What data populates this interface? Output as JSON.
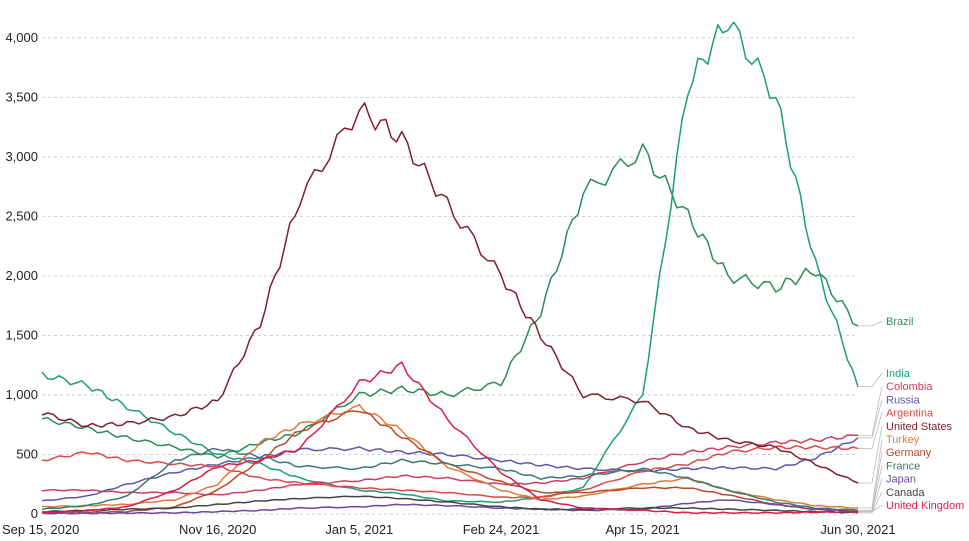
{
  "chart_data": {
    "type": "line",
    "xlabel": "",
    "ylabel": "",
    "ylim": [
      0,
      4200
    ],
    "grid": true,
    "legend_placement": "right",
    "x_ticks": [
      "Sep 15, 2020",
      "Nov 16, 2020",
      "Jan 5, 2021",
      "Feb 24, 2021",
      "Apr 15, 2021",
      "Jun 30, 2021"
    ],
    "y_ticks": [
      "0",
      "500",
      "1,000",
      "1,500",
      "2,000",
      "2,500",
      "3,000",
      "3,500",
      "4,000"
    ],
    "y_tick_values": [
      0,
      500,
      1000,
      1500,
      2000,
      2500,
      3000,
      3500,
      4000
    ],
    "x": [
      "2020-09-15",
      "2020-10-01",
      "2020-10-15",
      "2020-11-01",
      "2020-11-16",
      "2020-12-01",
      "2020-12-15",
      "2021-01-05",
      "2021-01-20",
      "2021-02-05",
      "2021-02-24",
      "2021-03-10",
      "2021-03-25",
      "2021-04-15",
      "2021-05-01",
      "2021-05-15",
      "2021-06-01",
      "2021-06-15",
      "2021-06-30"
    ],
    "series": [
      {
        "name": "Brazil",
        "color": "#2e8b57",
        "values": [
          800,
          720,
          640,
          560,
          480,
          600,
          680,
          1000,
          1050,
          1000,
          1100,
          1700,
          2700,
          3050,
          2500,
          2000,
          1900,
          2050,
          1580
        ]
      },
      {
        "name": "India",
        "color": "#1a9e7e",
        "values": [
          1170,
          1080,
          900,
          680,
          500,
          420,
          300,
          200,
          170,
          110,
          100,
          140,
          220,
          1000,
          3600,
          4150,
          3500,
          2100,
          1070
        ]
      },
      {
        "name": "Colombia",
        "color": "#c94060",
        "values": [
          200,
          200,
          180,
          180,
          160,
          200,
          250,
          280,
          320,
          300,
          250,
          260,
          300,
          440,
          520,
          560,
          600,
          620,
          660
        ]
      },
      {
        "name": "Russia",
        "color": "#5a5aa8",
        "values": [
          110,
          150,
          250,
          350,
          420,
          480,
          540,
          550,
          520,
          500,
          450,
          410,
          380,
          360,
          380,
          390,
          380,
          470,
          640
        ]
      },
      {
        "name": "Argentina",
        "color": "#e04848",
        "values": [
          450,
          520,
          450,
          420,
          400,
          300,
          260,
          220,
          200,
          180,
          140,
          140,
          200,
          360,
          420,
          520,
          560,
          560,
          550
        ]
      },
      {
        "name": "United States",
        "color": "#7d2032",
        "values": [
          850,
          740,
          760,
          820,
          950,
          1600,
          2650,
          3400,
          3150,
          2600,
          2000,
          1500,
          1000,
          950,
          720,
          620,
          560,
          420,
          260
        ]
      },
      {
        "name": "Turkey",
        "color": "#e07a3a",
        "values": [
          60,
          70,
          80,
          120,
          250,
          600,
          750,
          900,
          700,
          400,
          200,
          120,
          150,
          250,
          300,
          200,
          120,
          70,
          50
        ]
      },
      {
        "name": "Germany",
        "color": "#b84a2a",
        "values": [
          10,
          15,
          20,
          60,
          200,
          450,
          700,
          880,
          650,
          420,
          270,
          180,
          180,
          220,
          220,
          160,
          80,
          40,
          30
        ]
      },
      {
        "name": "France",
        "color": "#3a7a78",
        "values": [
          40,
          70,
          150,
          450,
          550,
          480,
          400,
          380,
          450,
          420,
          380,
          300,
          320,
          380,
          300,
          200,
          100,
          50,
          30
        ]
      },
      {
        "name": "Japan",
        "color": "#6b4a9e",
        "values": [
          5,
          5,
          8,
          10,
          20,
          30,
          50,
          60,
          80,
          70,
          50,
          40,
          30,
          40,
          90,
          120,
          80,
          40,
          20
        ]
      },
      {
        "name": "Canada",
        "color": "#444444",
        "values": [
          20,
          30,
          40,
          50,
          80,
          110,
          130,
          150,
          130,
          100,
          60,
          40,
          40,
          50,
          50,
          40,
          30,
          20,
          10
        ]
      },
      {
        "name": "United Kingdom",
        "color": "#d4204a",
        "values": [
          10,
          30,
          60,
          200,
          400,
          450,
          550,
          1100,
          1250,
          800,
          350,
          120,
          50,
          30,
          10,
          10,
          10,
          15,
          20
        ]
      }
    ],
    "legend": [
      {
        "name": "Brazil",
        "color": "#2e8b57"
      },
      {
        "name": "India",
        "color": "#1a9e7e"
      },
      {
        "name": "Colombia",
        "color": "#c94060"
      },
      {
        "name": "Russia",
        "color": "#5a5aa8"
      },
      {
        "name": "Argentina",
        "color": "#e04848"
      },
      {
        "name": "United States",
        "color": "#7d2032"
      },
      {
        "name": "Turkey",
        "color": "#e07a3a"
      },
      {
        "name": "Germany",
        "color": "#b84a2a"
      },
      {
        "name": "France",
        "color": "#3a7a78"
      },
      {
        "name": "Japan",
        "color": "#6b4a9e"
      },
      {
        "name": "Canada",
        "color": "#444444"
      },
      {
        "name": "United Kingdom",
        "color": "#d4204a"
      }
    ]
  }
}
